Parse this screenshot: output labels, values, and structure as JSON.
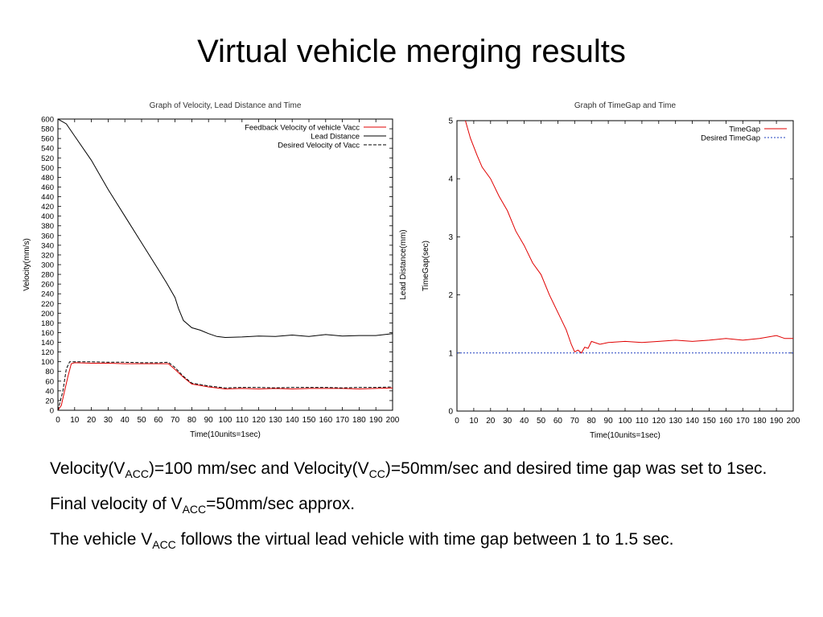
{
  "slide": {
    "title": "Virtual vehicle merging results"
  },
  "chart_data": [
    {
      "type": "line",
      "title": "Graph of Velocity, Lead Distance and Time",
      "xlabel": "Time(10units=1sec)",
      "ylabel": "Velocity(mm/s)",
      "ylabel2": "Lead Distance(mm)",
      "xlim": [
        0,
        200
      ],
      "ylim": [
        0,
        600
      ],
      "xticks": [
        0,
        10,
        20,
        30,
        40,
        50,
        60,
        70,
        80,
        90,
        100,
        110,
        120,
        130,
        140,
        150,
        160,
        170,
        180,
        190,
        200
      ],
      "yticks": [
        0,
        20,
        40,
        60,
        80,
        100,
        120,
        140,
        160,
        180,
        200,
        220,
        240,
        260,
        280,
        300,
        320,
        340,
        360,
        380,
        400,
        420,
        440,
        460,
        480,
        500,
        520,
        540,
        560,
        580,
        600
      ],
      "grid": false,
      "legend_position": "top-right",
      "series": [
        {
          "name": "Feedback Velocity of vehicle Vacc",
          "color": "#e00000",
          "dash": "solid",
          "x": [
            0,
            2,
            4,
            6,
            8,
            10,
            20,
            30,
            40,
            50,
            60,
            66,
            70,
            75,
            80,
            90,
            100,
            110,
            120,
            130,
            140,
            150,
            160,
            170,
            180,
            190,
            200
          ],
          "y": [
            0,
            10,
            40,
            70,
            96,
            98,
            97,
            97,
            96,
            96,
            96,
            96,
            84,
            68,
            54,
            48,
            44,
            45,
            44,
            45,
            44,
            45,
            45,
            45,
            44,
            45,
            46
          ]
        },
        {
          "name": "Lead Distance",
          "color": "#000000",
          "dash": "solid",
          "x": [
            0,
            5,
            10,
            20,
            30,
            40,
            50,
            60,
            65,
            70,
            72,
            75,
            80,
            85,
            90,
            95,
            100,
            110,
            120,
            130,
            140,
            150,
            160,
            170,
            180,
            190,
            200
          ],
          "y": [
            600,
            590,
            565,
            515,
            455,
            400,
            345,
            290,
            262,
            232,
            210,
            185,
            170,
            165,
            158,
            152,
            150,
            151,
            153,
            152,
            155,
            152,
            156,
            153,
            154,
            154,
            158
          ]
        },
        {
          "name": "Desired Velocity of Vacc",
          "color": "#000000",
          "dash": "dashed",
          "x": [
            0,
            3,
            5,
            7,
            10,
            20,
            30,
            40,
            50,
            60,
            66,
            70,
            75,
            80,
            90,
            100,
            110,
            120,
            130,
            140,
            150,
            160,
            170,
            180,
            190,
            200
          ],
          "y": [
            0,
            40,
            85,
            100,
            100,
            100,
            99,
            99,
            98,
            98,
            99,
            88,
            70,
            56,
            50,
            46,
            47,
            47,
            46,
            47,
            47,
            47,
            46,
            47,
            47,
            48
          ]
        }
      ]
    },
    {
      "type": "line",
      "title": "Graph of TimeGap and Time",
      "xlabel": "Time(10units=1sec)",
      "ylabel": "TimeGap(sec)",
      "xlim": [
        0,
        200
      ],
      "ylim": [
        0,
        5
      ],
      "xticks": [
        0,
        10,
        20,
        30,
        40,
        50,
        60,
        70,
        80,
        90,
        100,
        110,
        120,
        130,
        140,
        150,
        160,
        170,
        180,
        190,
        200
      ],
      "yticks": [
        0,
        1,
        2,
        3,
        4,
        5
      ],
      "grid": false,
      "legend_position": "top-right",
      "series": [
        {
          "name": "TimeGap",
          "color": "#e00000",
          "dash": "solid",
          "x": [
            0,
            5,
            8,
            12,
            15,
            20,
            25,
            30,
            35,
            40,
            45,
            50,
            55,
            60,
            65,
            68,
            70,
            72,
            74,
            76,
            78,
            80,
            85,
            90,
            100,
            110,
            120,
            130,
            140,
            150,
            160,
            170,
            180,
            190,
            195,
            200
          ],
          "y": [
            5.3,
            5.0,
            4.7,
            4.4,
            4.2,
            4.0,
            3.7,
            3.45,
            3.1,
            2.85,
            2.55,
            2.35,
            2.0,
            1.7,
            1.4,
            1.15,
            1.02,
            1.05,
            1.0,
            1.1,
            1.08,
            1.2,
            1.15,
            1.18,
            1.2,
            1.18,
            1.2,
            1.22,
            1.2,
            1.22,
            1.25,
            1.22,
            1.25,
            1.3,
            1.25,
            1.25
          ]
        },
        {
          "name": "Desired TimeGap",
          "color": "#1f3fbf",
          "dash": "dotted",
          "x": [
            0,
            200
          ],
          "y": [
            1,
            1
          ]
        }
      ]
    }
  ],
  "bullets": [
    {
      "parts": [
        {
          "text": "Velocity(V"
        },
        {
          "text": "ACC",
          "sub": true
        },
        {
          "text": ")=100 mm/sec and Velocity(V"
        },
        {
          "text": "CC",
          "sub": true
        },
        {
          "text": ")=50mm/sec and desired time gap was set to 1sec."
        }
      ]
    },
    {
      "parts": [
        {
          "text": "Final velocity of V"
        },
        {
          "text": "ACC",
          "sub": true
        },
        {
          "text": "=50mm/sec approx."
        }
      ]
    },
    {
      "parts": [
        {
          "text": "The vehicle V"
        },
        {
          "text": "ACC",
          "sub": true
        },
        {
          "text": " follows the virtual lead vehicle with time gap between 1 to 1.5 sec."
        }
      ]
    }
  ]
}
